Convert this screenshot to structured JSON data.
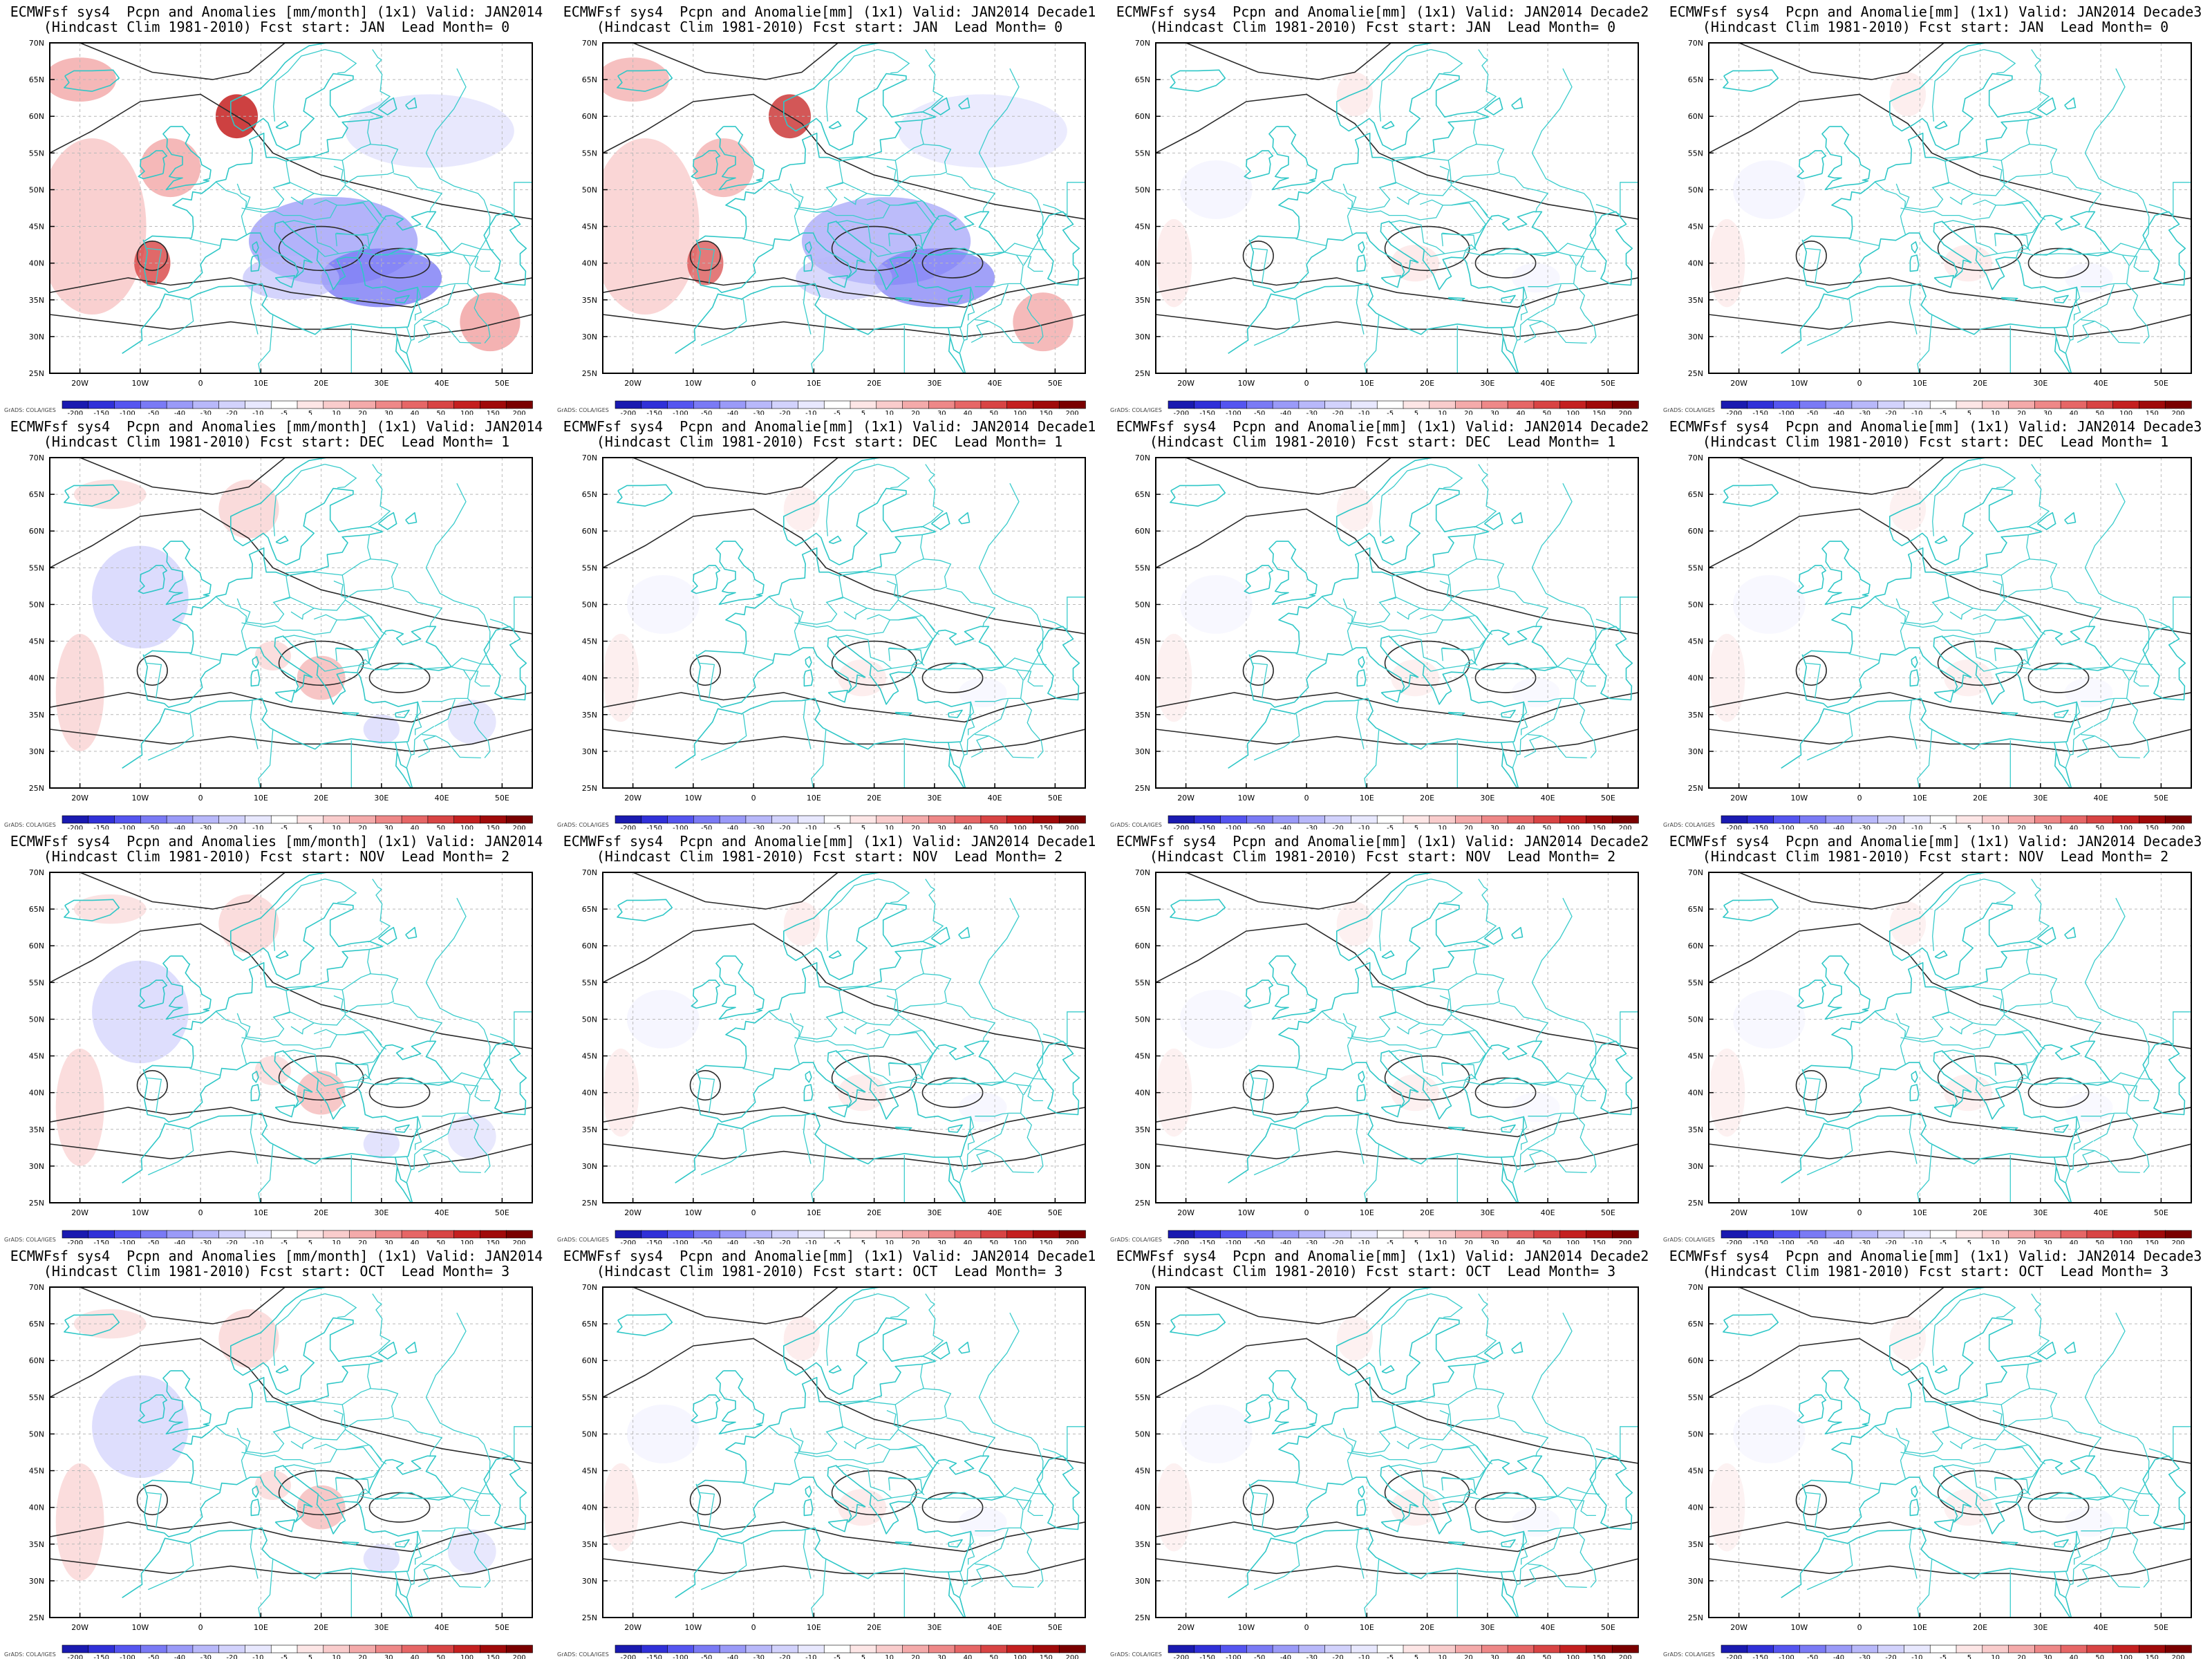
{
  "colorbar": {
    "labels": [
      "-200",
      "-150",
      "-100",
      "-50",
      "-40",
      "-30",
      "-20",
      "-10",
      "-5",
      "5",
      "10",
      "20",
      "30",
      "40",
      "50",
      "100",
      "150",
      "200"
    ],
    "colors": [
      "#1a1ab0",
      "#3030d8",
      "#5555f0",
      "#7a7af5",
      "#9a9af8",
      "#b8b8fa",
      "#d2d2fc",
      "#e8e8fe",
      "#ffffff",
      "#fde6e6",
      "#f9cccc",
      "#f4aaaa",
      "#ee8888",
      "#e66666",
      "#d84444",
      "#c42020",
      "#a00a0a",
      "#7a0000"
    ],
    "credit": "GrADS: COLA/IGES"
  },
  "axes": {
    "lon_labels": [
      "20W",
      "10W",
      "0",
      "10E",
      "20E",
      "30E",
      "40E",
      "50E"
    ],
    "lat_labels": [
      "70N",
      "65N",
      "60N",
      "55N",
      "50N",
      "45N",
      "40N",
      "35N",
      "30N",
      "25N"
    ]
  },
  "panels": [
    {
      "line1": "ECMWFsf sys4  Pcpn and Anomalies [mm/month] (1x1) Valid: JAN2014",
      "line2": "(Hindcast Clim 1981-2010) Fcst start: JAN  Lead Month= 0",
      "intensity": 1.0
    },
    {
      "line1": "ECMWFsf sys4  Pcpn and Anomalie[mm] (1x1) Valid: JAN2014 Decade1",
      "line2": "(Hindcast Clim 1981-2010) Fcst start: JAN  Lead Month= 0",
      "intensity": 0.85
    },
    {
      "line1": "ECMWFsf sys4  Pcpn and Anomalie[mm] (1x1) Valid: JAN2014 Decade2",
      "line2": "(Hindcast Clim 1981-2010) Fcst start: JAN  Lead Month= 0",
      "intensity": 0.35
    },
    {
      "line1": "ECMWFsf sys4  Pcpn and Anomalie[mm] (1x1) Valid: JAN2014 Decade3",
      "line2": "(Hindcast Clim 1981-2010) Fcst start: JAN  Lead Month= 0",
      "intensity": 0.3
    },
    {
      "line1": "ECMWFsf sys4  Pcpn and Anomalies [mm/month] (1x1) Valid: JAN2014",
      "line2": "(Hindcast Clim 1981-2010) Fcst start: DEC  Lead Month= 1",
      "intensity": 0.6
    },
    {
      "line1": "ECMWFsf sys4  Pcpn and Anomalie[mm] (1x1) Valid: JAN2014 Decade1",
      "line2": "(Hindcast Clim 1981-2010) Fcst start: DEC  Lead Month= 1",
      "intensity": 0.25
    },
    {
      "line1": "ECMWFsf sys4  Pcpn and Anomalie[mm] (1x1) Valid: JAN2014 Decade2",
      "line2": "(Hindcast Clim 1981-2010) Fcst start: DEC  Lead Month= 1",
      "intensity": 0.2
    },
    {
      "line1": "ECMWFsf sys4  Pcpn and Anomalie[mm] (1x1) Valid: JAN2014 Decade3",
      "line2": "(Hindcast Clim 1981-2010) Fcst start: DEC  Lead Month= 1",
      "intensity": 0.2
    },
    {
      "line1": "ECMWFsf sys4  Pcpn and Anomalies [mm/month] (1x1) Valid: JAN2014",
      "line2": "(Hindcast Clim 1981-2010) Fcst start: NOV  Lead Month= 2",
      "intensity": 0.55
    },
    {
      "line1": "ECMWFsf sys4  Pcpn and Anomalie[mm] (1x1) Valid: JAN2014 Decade1",
      "line2": "(Hindcast Clim 1981-2010) Fcst start: NOV  Lead Month= 2",
      "intensity": 0.3
    },
    {
      "line1": "ECMWFsf sys4  Pcpn and Anomalie[mm] (1x1) Valid: JAN2014 Decade2",
      "line2": "(Hindcast Clim 1981-2010) Fcst start: NOV  Lead Month= 2",
      "intensity": 0.2
    },
    {
      "line1": "ECMWFsf sys4  Pcpn and Anomalie[mm] (1x1) Valid: JAN2014 Decade3",
      "line2": "(Hindcast Clim 1981-2010) Fcst start: NOV  Lead Month= 2",
      "intensity": 0.2
    },
    {
      "line1": "ECMWFsf sys4  Pcpn and Anomalies [mm/month] (1x1) Valid: JAN2014",
      "line2": "(Hindcast Clim 1981-2010) Fcst start: OCT  Lead Month= 3",
      "intensity": 0.55
    },
    {
      "line1": "ECMWFsf sys4  Pcpn and Anomalie[mm] (1x1) Valid: JAN2014 Decade1",
      "line2": "(Hindcast Clim 1981-2010) Fcst start: OCT  Lead Month= 3",
      "intensity": 0.35
    },
    {
      "line1": "ECMWFsf sys4  Pcpn and Anomalie[mm] (1x1) Valid: JAN2014 Decade2",
      "line2": "(Hindcast Clim 1981-2010) Fcst start: OCT  Lead Month= 3",
      "intensity": 0.2
    },
    {
      "line1": "ECMWFsf sys4  Pcpn and Anomalie[mm] (1x1) Valid: JAN2014 Decade3",
      "line2": "(Hindcast Clim 1981-2010) Fcst start: OCT  Lead Month= 3",
      "intensity": 0.15
    }
  ]
}
